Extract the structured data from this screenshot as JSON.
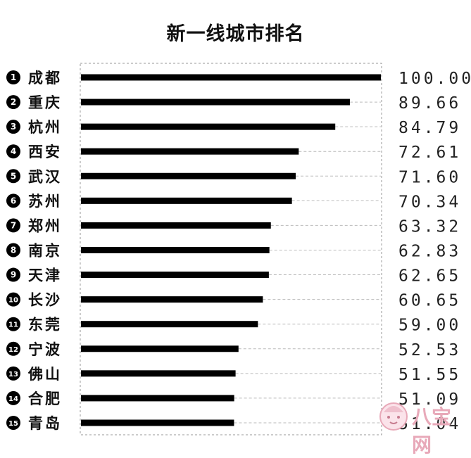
{
  "chart_data": {
    "type": "bar",
    "orientation": "horizontal",
    "title": "新一线城市排名",
    "categories": [
      "成都",
      "重庆",
      "杭州",
      "西安",
      "武汉",
      "苏州",
      "郑州",
      "南京",
      "天津",
      "长沙",
      "东莞",
      "宁波",
      "佛山",
      "合肥",
      "青岛"
    ],
    "ranks": [
      "1",
      "2",
      "3",
      "4",
      "5",
      "6",
      "7",
      "8",
      "9",
      "10",
      "11",
      "12",
      "13",
      "14",
      "15"
    ],
    "values": [
      100.0,
      89.66,
      84.79,
      72.61,
      71.6,
      70.34,
      63.32,
      62.83,
      62.65,
      60.65,
      59.0,
      52.53,
      51.55,
      51.09,
      51.04
    ],
    "value_labels": [
      "100.00",
      "89.66",
      "84.79",
      "72.61",
      "71.60",
      "70.34",
      "63.32",
      "62.83",
      "62.65",
      "60.65",
      "59.00",
      "52.53",
      "51.55",
      "51.09",
      "51.04"
    ],
    "xlim": [
      0,
      100
    ],
    "grid": false,
    "leader_lines": "dashed",
    "colors": {
      "bar": "#000000",
      "rank_badge": "#000000",
      "leader": "#bbbbbb",
      "frame": "#999999",
      "watermark": "#e8a9b9"
    }
  },
  "watermark": {
    "text": "八宝网",
    "icon": "baby-face-icon"
  }
}
